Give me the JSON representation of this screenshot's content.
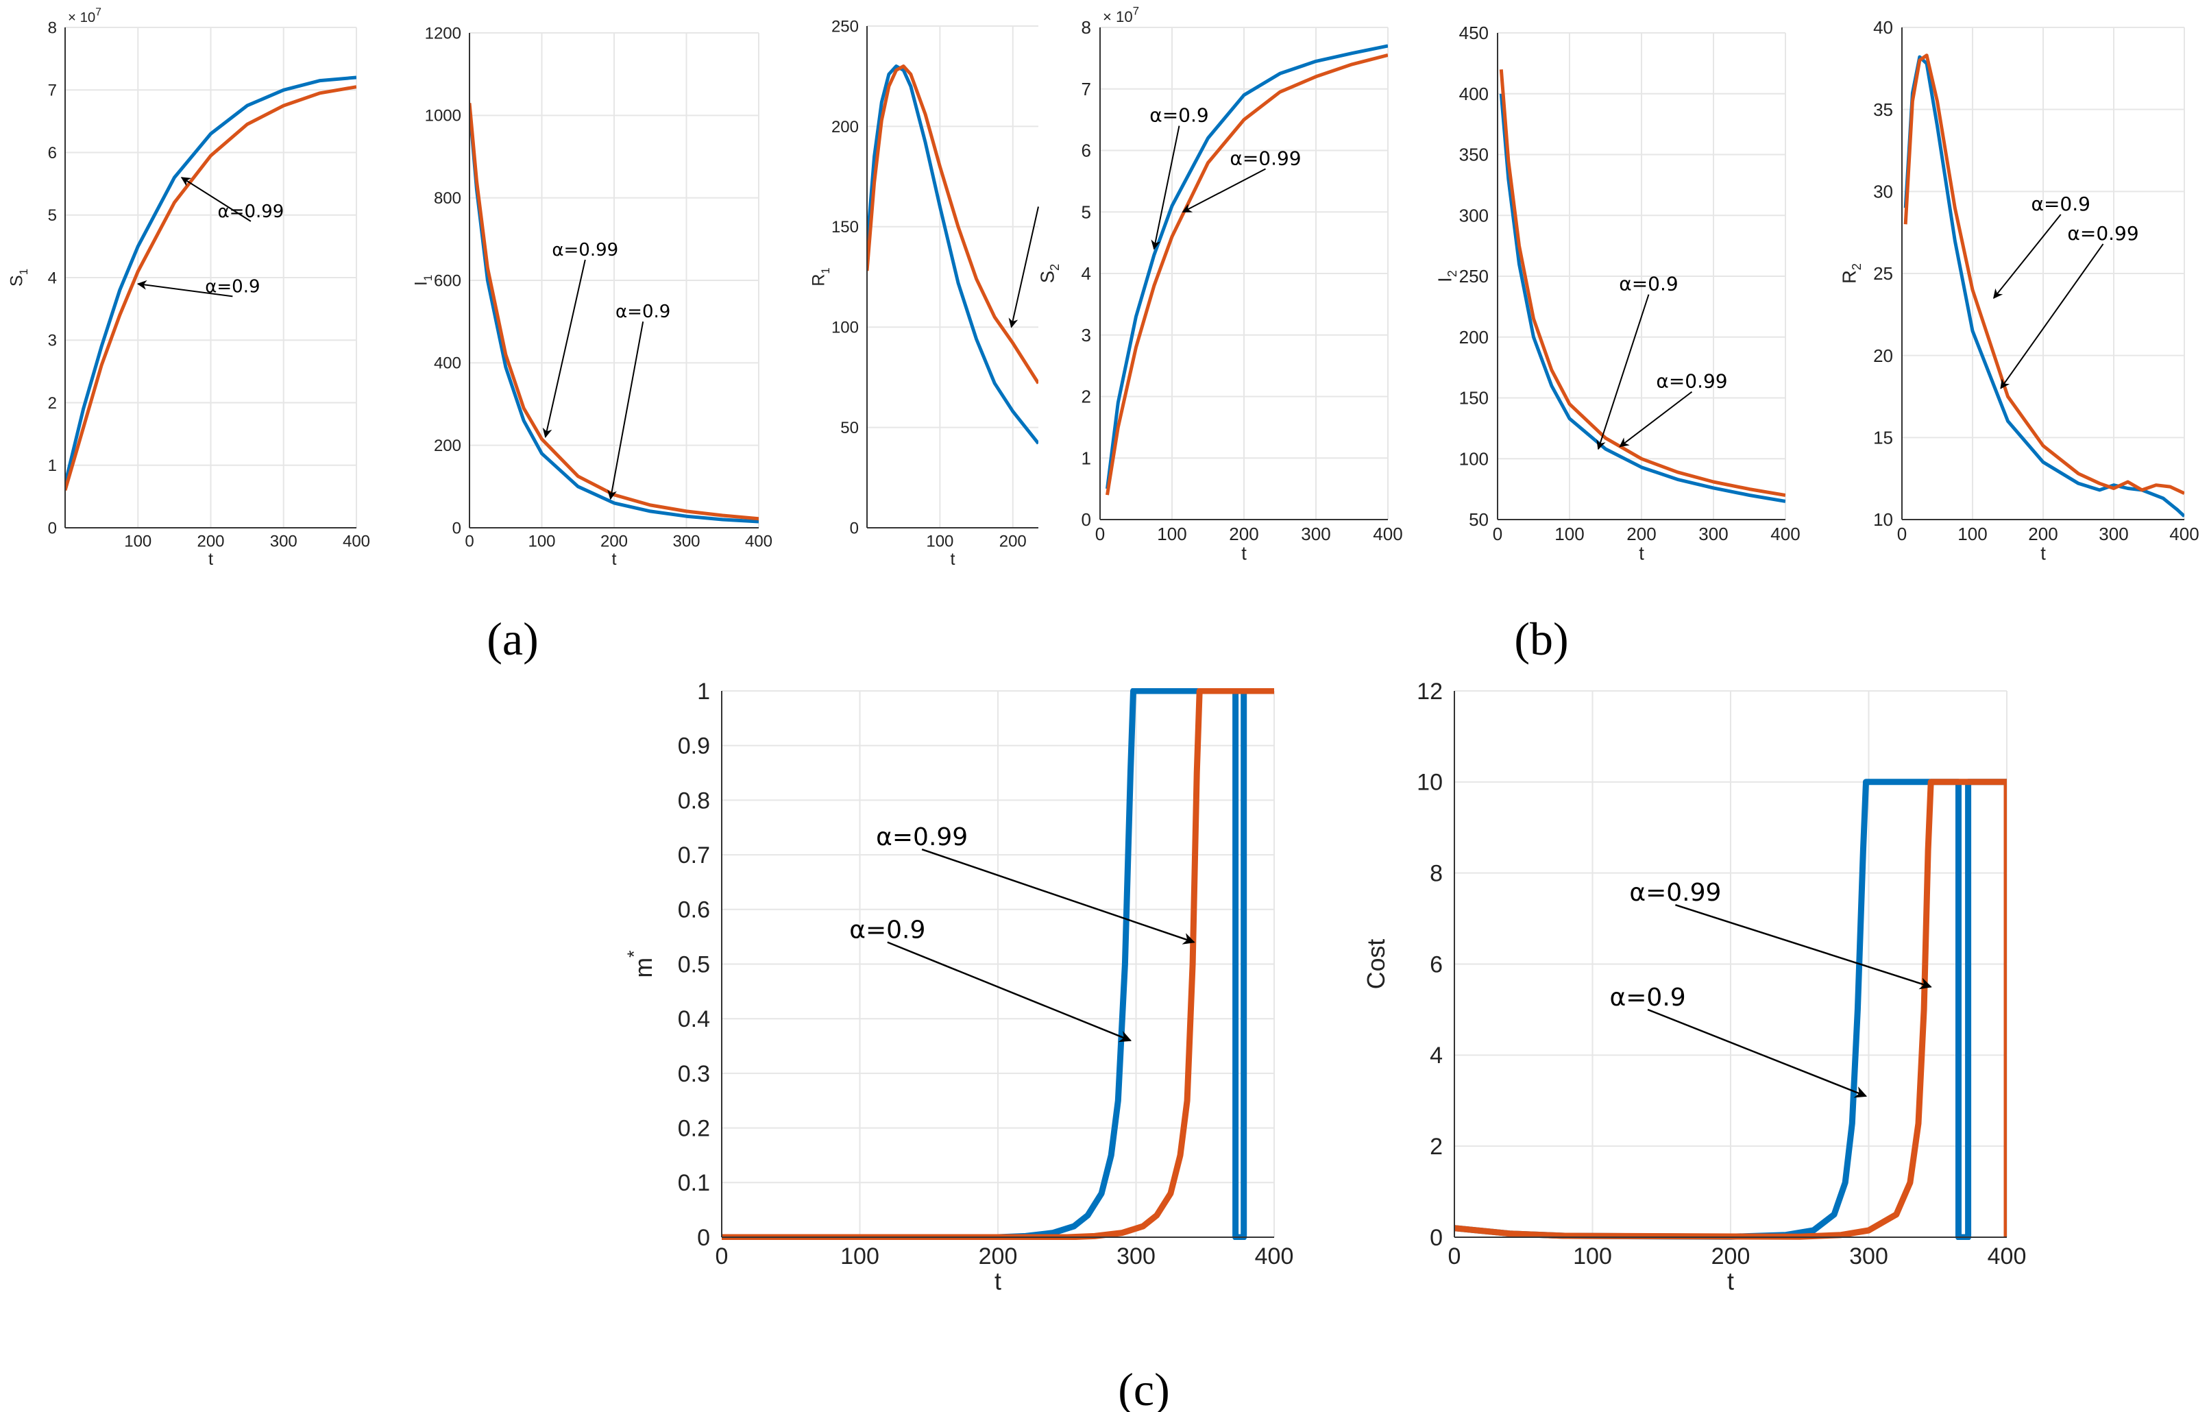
{
  "colors": {
    "blue": "#0072BD",
    "orange": "#D95319",
    "grid": "#e6e6e6",
    "axis": "#333333"
  },
  "panel_labels": {
    "a": "(a)",
    "b": "(b)",
    "c": "(c)"
  },
  "chart_data": [
    {
      "id": "S1",
      "type": "line",
      "xlabel": "t",
      "ylabel": "S",
      "ylabel_sub": "1",
      "xlim": [
        0,
        400
      ],
      "ylim": [
        0,
        8
      ],
      "xticks": [
        100,
        200,
        300,
        400
      ],
      "yticks": [
        0,
        1,
        2,
        3,
        4,
        5,
        6,
        7,
        8
      ],
      "ymult": "× 10",
      "ymult_exp": "7",
      "series": [
        {
          "name": "α=0.9",
          "color": "blue",
          "x": [
            0,
            25,
            50,
            75,
            100,
            150,
            200,
            250,
            300,
            350,
            400
          ],
          "y": [
            0.7,
            1.9,
            2.9,
            3.8,
            4.5,
            5.6,
            6.3,
            6.75,
            7.0,
            7.15,
            7.2
          ]
        },
        {
          "name": "α=0.99",
          "color": "orange",
          "x": [
            0,
            25,
            50,
            75,
            100,
            150,
            200,
            250,
            300,
            350,
            400
          ],
          "y": [
            0.6,
            1.6,
            2.6,
            3.4,
            4.1,
            5.2,
            5.95,
            6.45,
            6.75,
            6.95,
            7.05
          ]
        }
      ],
      "annotations": [
        {
          "text": "α=0.99",
          "tx": 255,
          "ty": 4.9,
          "ax": 160,
          "ay": 5.6
        },
        {
          "text": "α=0.9",
          "tx": 230,
          "ty": 3.7,
          "ax": 100,
          "ay": 3.9
        }
      ]
    },
    {
      "id": "I1",
      "type": "line",
      "xlabel": "t",
      "ylabel": "I",
      "ylabel_sub": "1",
      "xlim": [
        0,
        400
      ],
      "ylim": [
        0,
        1200
      ],
      "xticks": [
        0,
        100,
        200,
        300,
        400
      ],
      "yticks": [
        0,
        200,
        400,
        600,
        800,
        1000,
        1200
      ],
      "series": [
        {
          "name": "α=0.9",
          "color": "blue",
          "x": [
            0,
            10,
            25,
            50,
            75,
            100,
            150,
            200,
            250,
            300,
            350,
            400
          ],
          "y": [
            1020,
            820,
            600,
            390,
            260,
            180,
            100,
            60,
            40,
            28,
            20,
            15
          ]
        },
        {
          "name": "α=0.99",
          "color": "orange",
          "x": [
            0,
            10,
            25,
            50,
            75,
            100,
            150,
            200,
            250,
            300,
            350,
            400
          ],
          "y": [
            1030,
            840,
            630,
            420,
            290,
            215,
            125,
            80,
            55,
            40,
            30,
            22
          ]
        }
      ],
      "annotations": [
        {
          "text": "α=0.99",
          "tx": 160,
          "ty": 650,
          "ax": 105,
          "ay": 220
        },
        {
          "text": "α=0.9",
          "tx": 240,
          "ty": 500,
          "ax": 195,
          "ay": 70
        }
      ]
    },
    {
      "id": "R1",
      "type": "line",
      "xlabel": "t",
      "ylabel": "R",
      "ylabel_sub": "1",
      "xlim": [
        0,
        235
      ],
      "ylim": [
        0,
        250
      ],
      "xticks": [
        100,
        200
      ],
      "yticks": [
        0,
        50,
        100,
        150,
        200,
        250
      ],
      "series": [
        {
          "name": "α=0.9",
          "color": "blue",
          "x": [
            0,
            10,
            20,
            30,
            40,
            50,
            60,
            80,
            100,
            125,
            150,
            175,
            200,
            235
          ],
          "y": [
            140,
            185,
            212,
            226,
            230,
            228,
            220,
            192,
            160,
            122,
            94,
            72,
            58,
            42
          ]
        },
        {
          "name": "α=0.99",
          "color": "orange",
          "x": [
            0,
            10,
            20,
            30,
            40,
            50,
            60,
            80,
            100,
            125,
            150,
            175,
            200,
            235
          ],
          "y": [
            128,
            172,
            203,
            220,
            228,
            230,
            226,
            206,
            180,
            150,
            124,
            105,
            92,
            72
          ]
        }
      ],
      "annotations": [
        {
          "text": "",
          "tx": 235,
          "ty": 160,
          "ax": 198,
          "ay": 100
        }
      ]
    },
    {
      "id": "S2",
      "type": "line",
      "xlabel": "t",
      "ylabel": "S",
      "ylabel_sub": "2",
      "xlim": [
        0,
        400
      ],
      "ylim": [
        0,
        8
      ],
      "xticks": [
        0,
        100,
        200,
        300,
        400
      ],
      "yticks": [
        0,
        1,
        2,
        3,
        4,
        5,
        6,
        7,
        8
      ],
      "ymult": "× 10",
      "ymult_exp": "7",
      "series": [
        {
          "name": "α=0.9",
          "color": "blue",
          "x": [
            10,
            25,
            50,
            75,
            100,
            150,
            200,
            250,
            300,
            350,
            400
          ],
          "y": [
            0.5,
            1.9,
            3.3,
            4.3,
            5.1,
            6.2,
            6.9,
            7.25,
            7.45,
            7.58,
            7.7
          ]
        },
        {
          "name": "α=0.99",
          "color": "orange",
          "x": [
            10,
            25,
            50,
            75,
            100,
            150,
            200,
            250,
            300,
            350,
            400
          ],
          "y": [
            0.4,
            1.5,
            2.8,
            3.8,
            4.6,
            5.8,
            6.5,
            6.95,
            7.2,
            7.4,
            7.55
          ]
        }
      ],
      "annotations": [
        {
          "text": "α=0.9",
          "tx": 110,
          "ty": 6.4,
          "ax": 75,
          "ay": 4.4
        },
        {
          "text": "α=0.99",
          "tx": 230,
          "ty": 5.7,
          "ax": 115,
          "ay": 5.0
        }
      ]
    },
    {
      "id": "I2",
      "type": "line",
      "xlabel": "t",
      "ylabel": "I",
      "ylabel_sub": "2",
      "xlim": [
        0,
        400
      ],
      "ylim": [
        50,
        450
      ],
      "xticks": [
        0,
        100,
        200,
        300,
        400
      ],
      "yticks": [
        50,
        100,
        150,
        200,
        250,
        300,
        350,
        400,
        450
      ],
      "series": [
        {
          "name": "α=0.9",
          "color": "blue",
          "x": [
            5,
            15,
            30,
            50,
            75,
            100,
            150,
            200,
            250,
            300,
            350,
            400
          ],
          "y": [
            400,
            330,
            260,
            200,
            160,
            133,
            108,
            93,
            83,
            76,
            70,
            65
          ]
        },
        {
          "name": "α=0.99",
          "color": "orange",
          "x": [
            5,
            15,
            30,
            50,
            75,
            100,
            150,
            200,
            250,
            300,
            350,
            400
          ],
          "y": [
            420,
            345,
            275,
            215,
            173,
            145,
            117,
            100,
            89,
            81,
            75,
            70
          ]
        }
      ],
      "annotations": [
        {
          "text": "α=0.9",
          "tx": 210,
          "ty": 235,
          "ax": 140,
          "ay": 108
        },
        {
          "text": "α=0.99",
          "tx": 270,
          "ty": 155,
          "ax": 170,
          "ay": 110
        }
      ]
    },
    {
      "id": "R2",
      "type": "line",
      "xlabel": "t",
      "ylabel": "R",
      "ylabel_sub": "2",
      "xlim": [
        0,
        400
      ],
      "ylim": [
        10,
        40
      ],
      "xticks": [
        0,
        100,
        200,
        300,
        400
      ],
      "yticks": [
        10,
        15,
        20,
        25,
        30,
        35,
        40
      ],
      "series": [
        {
          "name": "α=0.9",
          "color": "blue",
          "x": [
            5,
            15,
            25,
            35,
            50,
            75,
            100,
            150,
            200,
            250,
            280,
            300,
            320,
            340,
            370,
            390,
            400
          ],
          "y": [
            29,
            36,
            38.2,
            37.8,
            34,
            27,
            21.5,
            16,
            13.5,
            12.2,
            11.8,
            12.1,
            11.9,
            11.8,
            11.3,
            10.6,
            10.2
          ]
        },
        {
          "name": "α=0.99",
          "color": "orange",
          "x": [
            5,
            15,
            25,
            35,
            50,
            75,
            100,
            150,
            200,
            250,
            280,
            300,
            320,
            340,
            360,
            380,
            400
          ],
          "y": [
            28,
            35.5,
            38,
            38.3,
            35.5,
            29,
            24,
            17.5,
            14.5,
            12.8,
            12.2,
            11.9,
            12.3,
            11.8,
            12.1,
            12,
            11.6
          ]
        }
      ],
      "annotations": [
        {
          "text": "α=0.9",
          "tx": 225,
          "ty": 28.6,
          "ax": 130,
          "ay": 23.5
        },
        {
          "text": "α=0.99",
          "tx": 285,
          "ty": 26.8,
          "ax": 140,
          "ay": 18
        }
      ]
    },
    {
      "id": "m",
      "type": "line",
      "xlabel": "t",
      "ylabel": "m",
      "ylabel_sup": "*",
      "xlim": [
        0,
        400
      ],
      "ylim": [
        0,
        1
      ],
      "xticks": [
        0,
        100,
        200,
        300,
        400
      ],
      "yticks": [
        0,
        0.1,
        0.2,
        0.3,
        0.4,
        0.5,
        0.6,
        0.7,
        0.8,
        0.9,
        1
      ],
      "series": [
        {
          "name": "α=0.9",
          "color": "blue",
          "x": [
            0,
            200,
            220,
            240,
            255,
            265,
            275,
            282,
            287,
            292,
            296,
            298,
            300,
            372,
            372,
            378,
            378,
            400
          ],
          "y": [
            0,
            0,
            0.002,
            0.008,
            0.02,
            0.04,
            0.08,
            0.15,
            0.25,
            0.5,
            0.85,
            1,
            1,
            1,
            0,
            0,
            1,
            1
          ]
        },
        {
          "name": "α=0.99",
          "color": "orange",
          "x": [
            0,
            250,
            270,
            290,
            305,
            315,
            325,
            332,
            337,
            341,
            344,
            346,
            348,
            400
          ],
          "y": [
            0,
            0,
            0.002,
            0.008,
            0.02,
            0.04,
            0.08,
            0.15,
            0.25,
            0.5,
            0.85,
            1,
            1,
            1
          ]
        }
      ],
      "annotations": [
        {
          "text": "α=0.99",
          "tx": 145,
          "ty": 0.71,
          "ax": 342,
          "ay": 0.54
        },
        {
          "text": "α=0.9",
          "tx": 120,
          "ty": 0.54,
          "ax": 296,
          "ay": 0.36
        }
      ]
    },
    {
      "id": "cost",
      "type": "line",
      "xlabel": "t",
      "ylabel": "Cost",
      "xlim": [
        0,
        400
      ],
      "ylim": [
        0,
        12
      ],
      "xticks": [
        0,
        100,
        200,
        300,
        400
      ],
      "yticks": [
        0,
        2,
        4,
        6,
        8,
        10,
        12
      ],
      "series": [
        {
          "name": "α=0.9",
          "color": "blue",
          "x": [
            0,
            40,
            80,
            200,
            240,
            260,
            275,
            283,
            288,
            292,
            296,
            298,
            300,
            365,
            365,
            372,
            372,
            400
          ],
          "y": [
            0.2,
            0.08,
            0.03,
            0.01,
            0.05,
            0.15,
            0.5,
            1.2,
            2.5,
            5,
            8.5,
            10,
            10,
            10,
            0,
            0,
            10,
            10
          ]
        },
        {
          "name": "α=0.99",
          "color": "orange",
          "x": [
            0,
            40,
            80,
            250,
            280,
            300,
            320,
            330,
            336,
            340,
            343,
            345,
            347,
            400,
            400
          ],
          "y": [
            0.2,
            0.08,
            0.03,
            0.01,
            0.05,
            0.15,
            0.5,
            1.2,
            2.5,
            5,
            8.5,
            10,
            10,
            10,
            0
          ]
        }
      ],
      "annotations": [
        {
          "text": "α=0.99",
          "tx": 160,
          "ty": 7.3,
          "ax": 345,
          "ay": 5.5
        },
        {
          "text": "α=0.9",
          "tx": 140,
          "ty": 5.0,
          "ax": 298,
          "ay": 3.1
        }
      ]
    }
  ]
}
